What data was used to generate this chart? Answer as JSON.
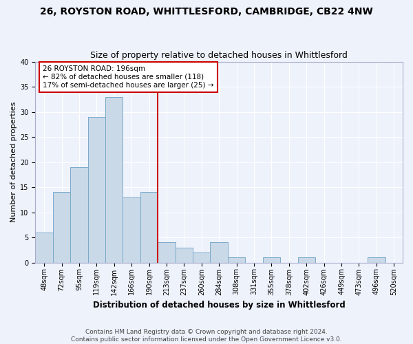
{
  "title1": "26, ROYSTON ROAD, WHITTLESFORD, CAMBRIDGE, CB22 4NW",
  "title2": "Size of property relative to detached houses in Whittlesford",
  "xlabel": "Distribution of detached houses by size in Whittlesford",
  "ylabel": "Number of detached properties",
  "categories": [
    "48sqm",
    "72sqm",
    "95sqm",
    "119sqm",
    "142sqm",
    "166sqm",
    "190sqm",
    "213sqm",
    "237sqm",
    "260sqm",
    "284sqm",
    "308sqm",
    "331sqm",
    "355sqm",
    "378sqm",
    "402sqm",
    "426sqm",
    "449sqm",
    "473sqm",
    "496sqm",
    "520sqm"
  ],
  "values": [
    6,
    14,
    19,
    29,
    33,
    13,
    14,
    4,
    3,
    2,
    4,
    1,
    0,
    1,
    0,
    1,
    0,
    0,
    0,
    1,
    0
  ],
  "bar_color": "#c9d9e8",
  "bar_edge_color": "#7aaaca",
  "ylim": [
    0,
    40
  ],
  "yticks": [
    0,
    5,
    10,
    15,
    20,
    25,
    30,
    35,
    40
  ],
  "property_label": "26 ROYSTON ROAD: 196sqm",
  "annotation_line1": "← 82% of detached houses are smaller (118)",
  "annotation_line2": "17% of semi-detached houses are larger (25) →",
  "vline_x_index": 6.5,
  "box_color": "#cc0000",
  "footer1": "Contains HM Land Registry data © Crown copyright and database right 2024.",
  "footer2": "Contains public sector information licensed under the Open Government Licence v3.0.",
  "bg_color": "#eef2fb",
  "grid_color": "#ffffff",
  "title1_fontsize": 10,
  "title2_fontsize": 9,
  "xlabel_fontsize": 8.5,
  "ylabel_fontsize": 8,
  "footer_fontsize": 6.5,
  "tick_fontsize": 7,
  "annot_fontsize": 7.5
}
